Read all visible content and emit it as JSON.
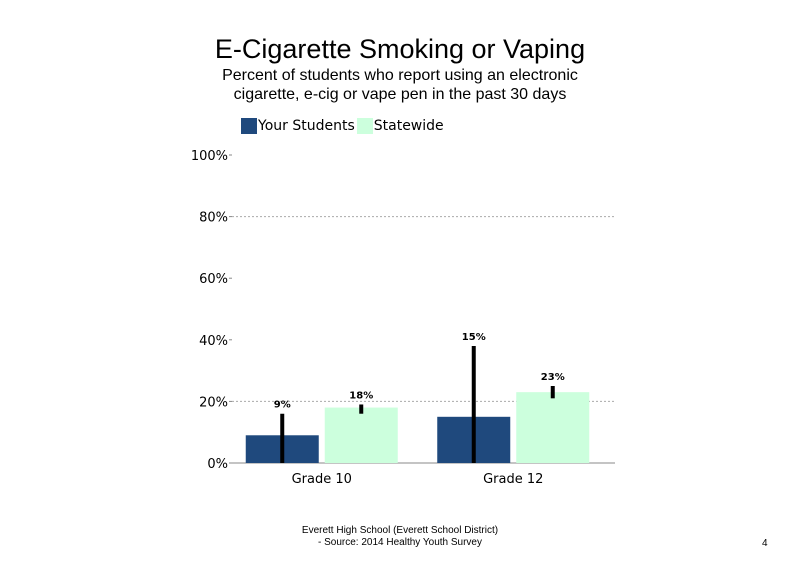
{
  "chart_data": {
    "type": "bar",
    "title": "E-Cigarette Smoking or Vaping",
    "subtitle": "Percent of students  who report using an electronic cigarette, e-cig or vape pen in the past 30 days",
    "categories": [
      "Grade 10",
      "Grade 12"
    ],
    "series": [
      {
        "name": "Your Students",
        "values": [
          9,
          15
        ],
        "labels": [
          "9%",
          "15%"
        ],
        "error_low": [
          0,
          0
        ],
        "error_high": [
          16,
          38
        ],
        "color": "#1f497d"
      },
      {
        "name": "Statewide",
        "values": [
          18,
          23
        ],
        "labels": [
          "18%",
          "23%"
        ],
        "error_low": [
          16,
          21
        ],
        "error_high": [
          19,
          25
        ],
        "color": "#ccffdd"
      }
    ],
    "ylim": [
      0,
      100
    ],
    "yticks": [
      "0%",
      "20%",
      "40%",
      "60%",
      "80%",
      "100%"
    ],
    "ytick_values": [
      0,
      20,
      40,
      60,
      80,
      100
    ],
    "gridlines": [
      20,
      80
    ],
    "legend": "top"
  },
  "footer": {
    "line1": "Everett High  School (Everett School District)",
    "line2": "- Source: 2014 Healthy  Youth Survey"
  },
  "page_number": "4"
}
